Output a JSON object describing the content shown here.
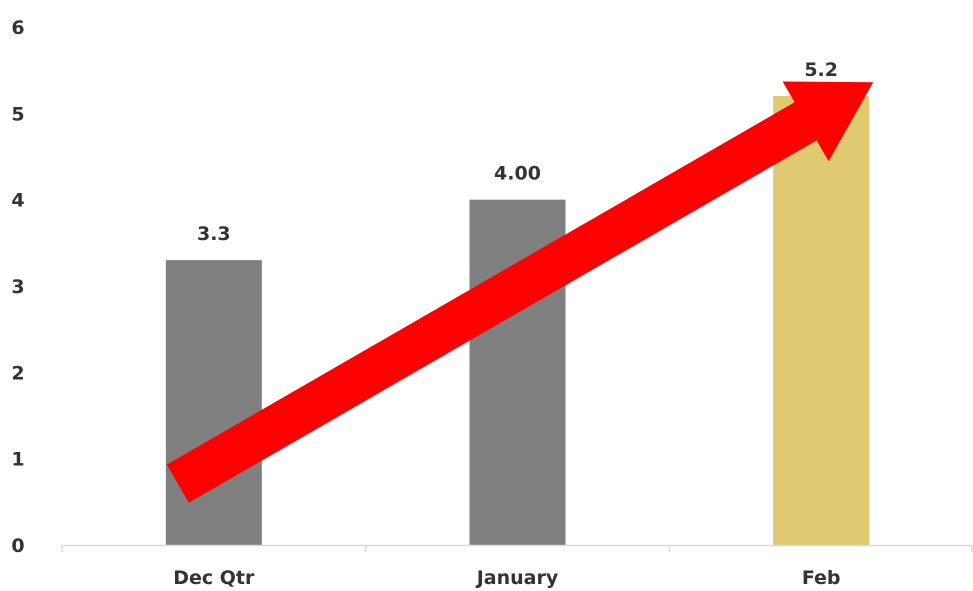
{
  "chart_data": {
    "type": "bar",
    "categories": [
      "Dec Qtr",
      "January",
      "Feb"
    ],
    "values": [
      3.3,
      4.0,
      5.2
    ],
    "data_labels": [
      "3.3",
      "4.00",
      "5.2"
    ],
    "ylim": [
      0,
      6
    ],
    "yticks": [
      "0",
      "1",
      "2",
      "3",
      "4",
      "5",
      "6"
    ],
    "title": "",
    "xlabel": "",
    "ylabel": "",
    "grid": false,
    "legend": "none",
    "colors": {
      "bar": "#7f7f7f",
      "highlight_bar": "#e0c970",
      "arrow": "#ff0000",
      "axis": "#d9d9d9",
      "text": "#333333"
    },
    "highlight_index": 2,
    "annotation": {
      "type": "arrow",
      "direction": "up-right",
      "from": {
        "category": "Dec Qtr",
        "value": 1.0
      },
      "to": {
        "category": "Feb",
        "value": 5.0
      }
    }
  }
}
